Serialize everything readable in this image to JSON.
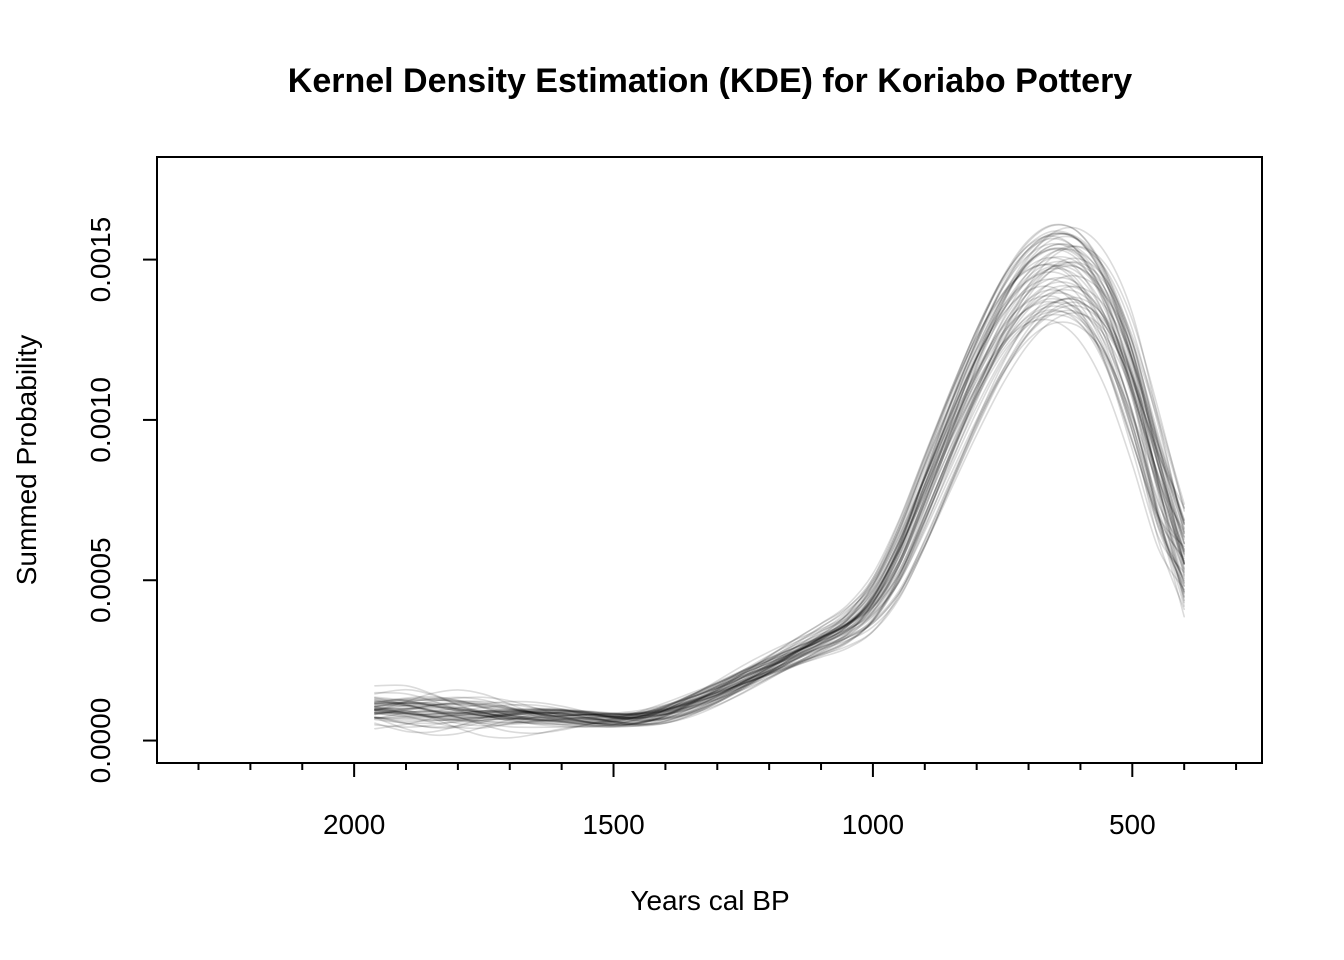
{
  "chart_data": {
    "type": "line",
    "title": "Kernel Density Estimation (KDE) for Koriabo Pottery",
    "xlabel": "Years cal BP",
    "ylabel": "Summed Probability",
    "xlim": [
      2380,
      250
    ],
    "ylim": [
      -7e-05,
      0.00182
    ],
    "x_reversed": true,
    "grid": false,
    "legend": "none",
    "x_major_ticks": [
      2000,
      1500,
      1000,
      500
    ],
    "x_minor_ticks": [
      2300,
      2200,
      2100,
      1900,
      1800,
      1700,
      1600,
      1400,
      1300,
      1200,
      1100,
      900,
      800,
      700,
      600,
      400,
      300
    ],
    "y_ticks": [
      0.0,
      0.0005,
      0.001,
      0.0015
    ],
    "y_tick_labels": [
      "0.0000",
      "0.0005",
      "0.0010",
      "0.0015"
    ],
    "line_color": "#000000",
    "line_opacity": 0.14,
    "replicate_count": 60,
    "x": [
      1960,
      1900,
      1850,
      1800,
      1750,
      1700,
      1650,
      1600,
      1550,
      1500,
      1450,
      1400,
      1350,
      1300,
      1250,
      1200,
      1150,
      1100,
      1050,
      1000,
      950,
      900,
      850,
      800,
      750,
      700,
      650,
      600,
      550,
      500,
      450,
      400
    ],
    "series": [
      {
        "values": [
          9.5e-05,
          9.5e-05,
          9.2e-05,
          8.8e-05,
          8.4e-05,
          8e-05,
          7.7e-05,
          7.4e-05,
          6.8e-05,
          6.4e-05,
          6.8e-05,
          8.5e-05,
          0.000115,
          0.00015,
          0.00019,
          0.00023,
          0.00027,
          0.00031,
          0.00035,
          0.00042,
          0.00056,
          0.00076,
          0.00096,
          0.00115,
          0.00131,
          0.00142,
          0.00147,
          0.00145,
          0.00134,
          0.00112,
          0.00082,
          0.00054
        ]
      }
    ]
  }
}
